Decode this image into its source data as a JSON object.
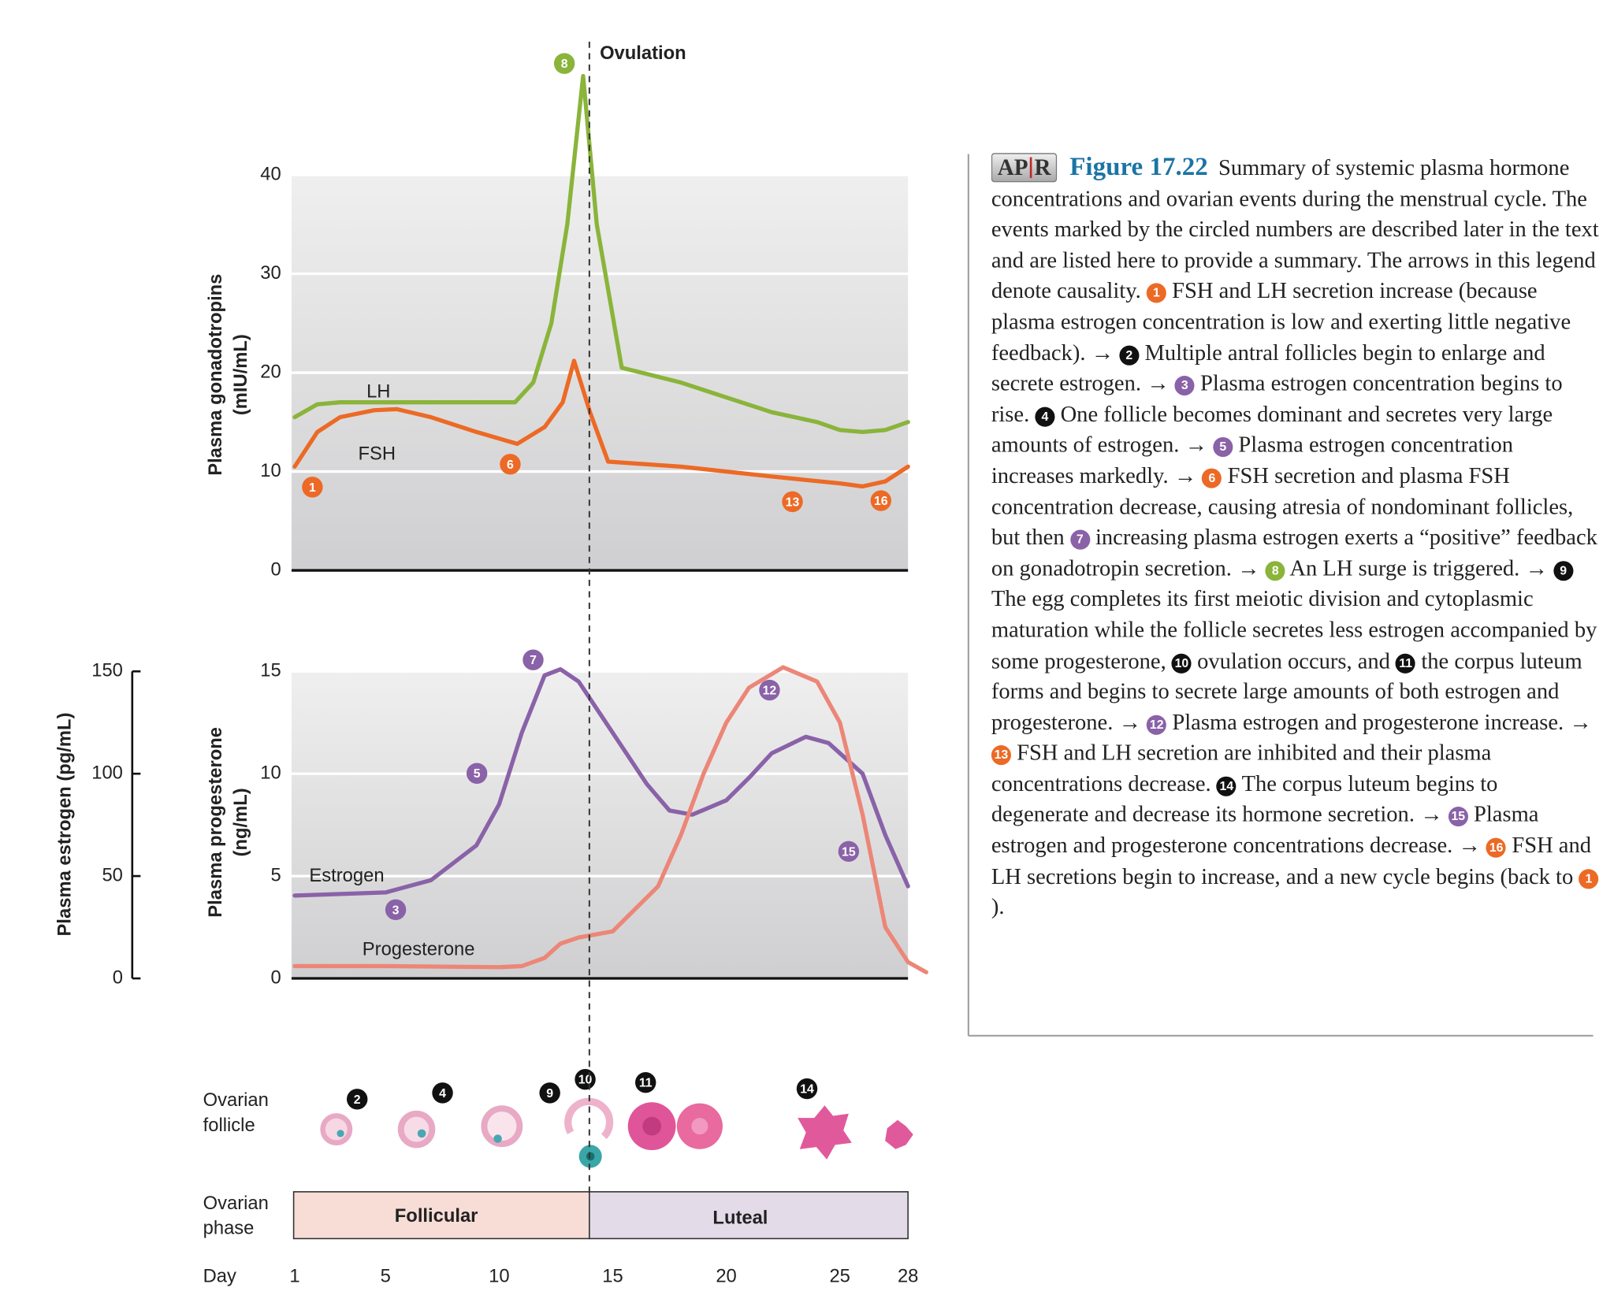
{
  "chart_data": [
    {
      "type": "line",
      "ylabel": [
        "Plasma gonadotropins",
        "(mIU/mL)"
      ],
      "annotation": "Ovulation",
      "xlim": [
        1,
        28
      ],
      "ylim": [
        0,
        40
      ],
      "yticks": [
        0,
        10,
        20,
        30,
        40
      ],
      "grid": true,
      "series": [
        {
          "name": "LH",
          "color": "#8ab43a",
          "x": [
            1,
            2,
            3,
            5,
            7,
            9,
            10.7,
            11.5,
            12.3,
            13,
            13.7,
            14.3,
            15.4,
            18,
            20,
            22,
            24,
            25,
            26,
            27,
            28
          ],
          "values": [
            15.5,
            16.8,
            17,
            17,
            17,
            17,
            17,
            19,
            25,
            35,
            50,
            35,
            20.5,
            19,
            17.5,
            16,
            15,
            14.2,
            14,
            14.2,
            15
          ]
        },
        {
          "name": "FSH",
          "color": "#ec6a25",
          "x": [
            1,
            2,
            3,
            4.5,
            5.5,
            7,
            9,
            10.8,
            12,
            12.8,
            13.3,
            14,
            14.8,
            18,
            22,
            25,
            26,
            27,
            28
          ],
          "values": [
            10.5,
            14,
            15.5,
            16.2,
            16.3,
            15.5,
            14,
            12.8,
            14.5,
            17,
            21.2,
            16,
            11,
            10.5,
            9.5,
            8.8,
            8.5,
            9,
            10.5
          ]
        }
      ],
      "markers": [
        {
          "label": "1",
          "color": "#ec6a25"
        },
        {
          "label": "6",
          "color": "#ec6a25"
        },
        {
          "label": "8",
          "color": "#8ab43a"
        },
        {
          "label": "13",
          "color": "#ec6a25"
        },
        {
          "label": "16",
          "color": "#ec6a25"
        }
      ]
    },
    {
      "type": "line",
      "ylabel": [
        "Plasma progesterone",
        "(ng/mL)"
      ],
      "y2label": "Plasma estrogen (pg/mL)",
      "xlabel": "Day",
      "xlim": [
        1,
        28
      ],
      "xticks": [
        1,
        5,
        10,
        15,
        20,
        25,
        28
      ],
      "ylim": [
        0,
        15
      ],
      "yticks": [
        0,
        5,
        10,
        15
      ],
      "y2lim": [
        0,
        150
      ],
      "y2ticks": [
        0,
        50,
        100,
        150
      ],
      "grid": true,
      "series": [
        {
          "name": "Estrogen",
          "color": "#8a62a8",
          "axis": "y2",
          "x": [
            1,
            5,
            7,
            9,
            10,
            11,
            12,
            12.7,
            13.5,
            15,
            16.5,
            17.5,
            18.5,
            20,
            21,
            22,
            23.5,
            24.5,
            26,
            27,
            28
          ],
          "values": [
            40.5,
            42,
            48,
            65,
            85,
            120,
            148,
            151,
            145,
            120,
            95,
            82,
            80,
            87,
            98,
            110,
            118,
            115,
            100,
            70,
            45
          ]
        },
        {
          "name": "Progesterone",
          "color": "#ec8677",
          "x": [
            1,
            5,
            10,
            11,
            12,
            12.7,
            13.5,
            15,
            17,
            18,
            19,
            20,
            21,
            22.5,
            24,
            25,
            26,
            27,
            28,
            28.8
          ],
          "values": [
            0.6,
            0.6,
            0.55,
            0.6,
            1,
            1.7,
            2,
            2.3,
            4.5,
            7,
            10,
            12.5,
            14.2,
            15.2,
            14.5,
            12.5,
            8,
            2.5,
            0.8,
            0.3
          ]
        }
      ],
      "markers": [
        {
          "label": "7",
          "color": "#8a62a8"
        },
        {
          "label": "5",
          "color": "#8a62a8"
        },
        {
          "label": "3",
          "color": "#8a62a8"
        },
        {
          "label": "12",
          "color": "#8a62a8"
        },
        {
          "label": "15",
          "color": "#8a62a8"
        }
      ]
    }
  ],
  "ovarian_follicle": {
    "label": [
      "Ovarian",
      "follicle"
    ],
    "markers": [
      "2",
      "4",
      "9",
      "10",
      "11",
      "14"
    ]
  },
  "ovarian_phase": {
    "label": [
      "Ovarian",
      "phase"
    ],
    "phases": [
      "Follicular",
      "Luteal"
    ]
  },
  "caption": {
    "logo": [
      "AP",
      "R"
    ],
    "figure": "Figure 17.22",
    "parts": [
      {
        "text": "Summary of systemic plasma hormone concentrations and ovarian events during the menstrual cycle. The events marked by the circled numbers are described later in the text and are listed here to provide a summary. The arrows in this legend denote causality. "
      },
      {
        "number": "1",
        "color": "#ec6a25"
      },
      {
        "text": " FSH and LH secretion increase (because plasma estrogen concentration is low and exerting little negative feedback). → "
      },
      {
        "number": "2",
        "color": "#111111"
      },
      {
        "text": " Multiple antral follicles begin to enlarge and secrete estrogen. → "
      },
      {
        "number": "3",
        "color": "#8a62a8"
      },
      {
        "text": " Plasma estrogen concentration begins to rise. "
      },
      {
        "number": "4",
        "color": "#111111"
      },
      {
        "text": " One follicle becomes dominant and secretes very large amounts of estrogen. → "
      },
      {
        "number": "5",
        "color": "#8a62a8"
      },
      {
        "text": " Plasma estrogen concentration increases markedly. → "
      },
      {
        "number": "6",
        "color": "#ec6a25"
      },
      {
        "text": " FSH secretion and plasma FSH concentration decrease, causing atresia of nondominant follicles, but then "
      },
      {
        "number": "7",
        "color": "#8a62a8"
      },
      {
        "text": " increasing plasma estrogen exerts a “positive” feedback on gonadotropin secretion. → "
      },
      {
        "number": "8",
        "color": "#8ab43a"
      },
      {
        "text": " An LH surge is triggered. → "
      },
      {
        "number": "9",
        "color": "#111111"
      },
      {
        "text": " The egg completes its first meiotic division and cytoplasmic maturation while the follicle secretes less estrogen accompanied by some progesterone, "
      },
      {
        "number": "10",
        "color": "#111111"
      },
      {
        "text": " ovulation occurs, and "
      },
      {
        "number": "11",
        "color": "#111111"
      },
      {
        "text": " the corpus luteum forms and begins to secrete large amounts of both estrogen and progesterone. → "
      },
      {
        "number": "12",
        "color": "#8a62a8"
      },
      {
        "text": " Plasma estrogen and progesterone increase. → "
      },
      {
        "number": "13",
        "color": "#ec6a25"
      },
      {
        "text": " FSH and LH secretion are inhibited and their plasma concentrations decrease. "
      },
      {
        "number": "14",
        "color": "#111111"
      },
      {
        "text": " The corpus luteum begins to degenerate and decrease its hormone secretion. → "
      },
      {
        "number": "15",
        "color": "#8a62a8"
      },
      {
        "text": " Plasma estrogen and progesterone concentrations decrease. → "
      },
      {
        "number": "16",
        "color": "#ec6a25"
      },
      {
        "text": " FSH and LH secretions begin to increase, and a new cycle begins (back to "
      },
      {
        "number": "1",
        "color": "#ec6a25"
      },
      {
        "text": ")."
      }
    ]
  }
}
